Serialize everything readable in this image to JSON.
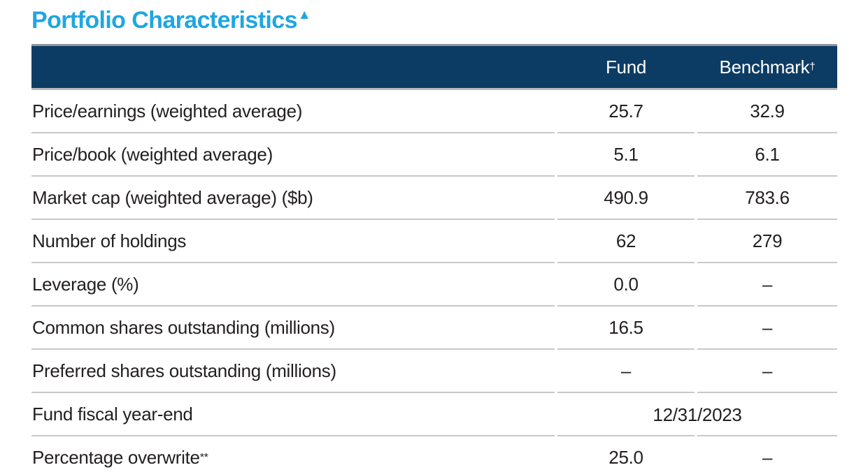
{
  "page": {
    "title": "Portfolio Characteristics",
    "title_marker": "▲"
  },
  "colors": {
    "title_accent": "#1fa6e1",
    "header_background": "#0c3c64",
    "header_text": "#ffffff",
    "row_separator": "#c8c8c8",
    "body_text": "#231f20"
  },
  "table": {
    "columns": {
      "label": "",
      "fund": "Fund",
      "benchmark": "Benchmark",
      "benchmark_sup": "†"
    },
    "rows": [
      {
        "label": "Price/earnings (weighted average)",
        "fund": "25.7",
        "benchmark": "32.9"
      },
      {
        "label": "Price/book (weighted average)",
        "fund": "5.1",
        "benchmark": "6.1"
      },
      {
        "label": "Market cap (weighted average) ($b)",
        "fund": "490.9",
        "benchmark": "783.6"
      },
      {
        "label": "Number of holdings",
        "fund": "62",
        "benchmark": "279"
      },
      {
        "label": "Leverage (%)",
        "fund": "0.0",
        "benchmark": "–"
      },
      {
        "label": "Common shares outstanding (millions)",
        "fund": "16.5",
        "benchmark": "–"
      },
      {
        "label": "Preferred shares outstanding (millions)",
        "fund": "–",
        "benchmark": "–"
      },
      {
        "label": "Fund fiscal year-end",
        "merged": "12/31/2023"
      },
      {
        "label": "Percentage overwrite",
        "label_sup": "**",
        "fund": "25.0",
        "benchmark": "–"
      }
    ]
  }
}
